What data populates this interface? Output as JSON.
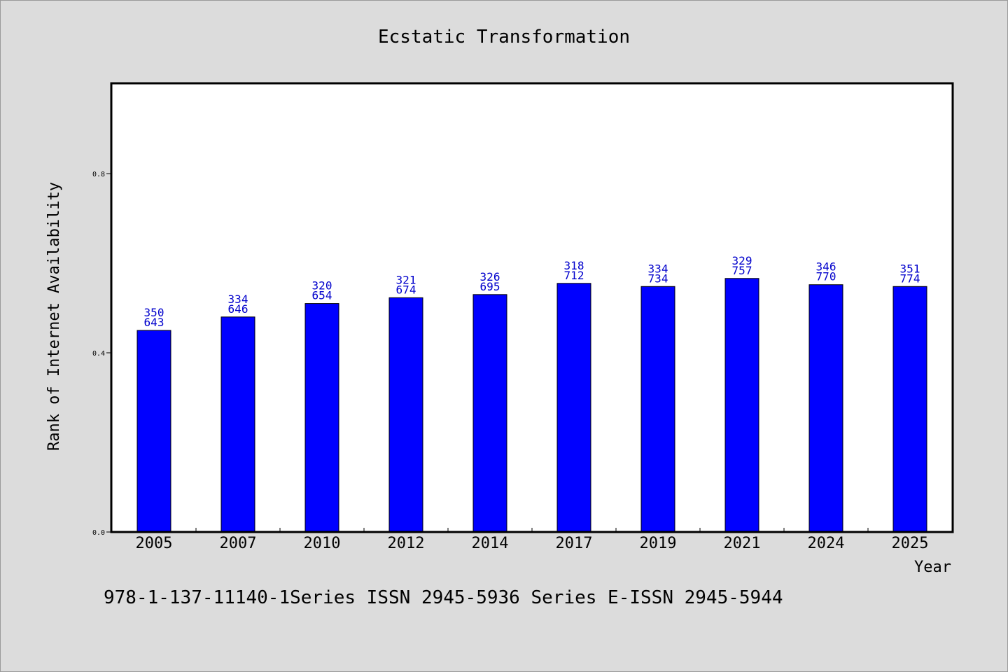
{
  "chart_data": {
    "type": "bar",
    "title": "Ecstatic Transformation",
    "xlabel": "Year",
    "ylabel": "Rank of Internet Availability",
    "categories": [
      "2005",
      "2007",
      "2010",
      "2012",
      "2014",
      "2017",
      "2019",
      "2021",
      "2024",
      "2025"
    ],
    "values": [
      0.45,
      0.48,
      0.51,
      0.523,
      0.53,
      0.555,
      0.548,
      0.566,
      0.552,
      0.548
    ],
    "label_top": [
      "350",
      "334",
      "320",
      "321",
      "326",
      "318",
      "334",
      "329",
      "346",
      "351"
    ],
    "label_bottom": [
      "643",
      "646",
      "654",
      "674",
      "695",
      "712",
      "734",
      "757",
      "770",
      "774"
    ],
    "ylim": [
      0,
      1.0
    ],
    "yticks": [
      0.0,
      0.4,
      0.8
    ],
    "ytick_labels": [
      "0.0",
      "0.4",
      "0.8"
    ],
    "grid": false,
    "legend": "none",
    "bar_color": "#0000ff",
    "label_color": "#0000cc",
    "footer": "978-1-137-11140-1Series ISSN 2945-5936 Series E-ISSN 2945-5944"
  }
}
